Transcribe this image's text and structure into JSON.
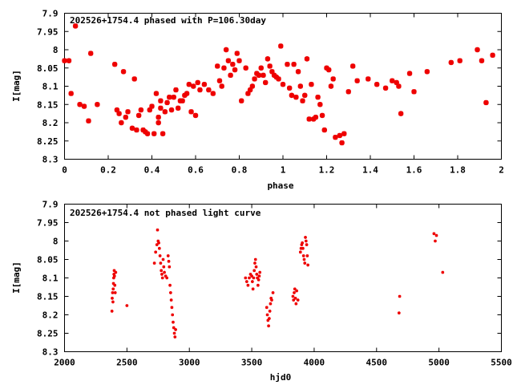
{
  "colors": {
    "series": "#ee0000",
    "axis": "#000000",
    "background": "#ffffff"
  },
  "chart_data": [
    {
      "type": "scatter",
      "title": "202526+1754.4 phased with P=106.30day",
      "xlabel": "phase",
      "ylabel": "I[mag]",
      "xlim": [
        0,
        2
      ],
      "ylim": [
        7.9,
        8.3
      ],
      "y_inverted": true,
      "grid": false,
      "xticks": [
        0,
        0.2,
        0.4,
        0.6,
        0.8,
        1,
        1.2,
        1.4,
        1.6,
        1.8,
        2
      ],
      "xtick_labels": [
        "0",
        "0.2",
        "0.4",
        "0.6",
        "0.8",
        "1",
        "1.2",
        "1.4",
        "1.6",
        "1.8",
        "2"
      ],
      "yticks": [
        7.9,
        7.95,
        8,
        8.05,
        8.1,
        8.15,
        8.2,
        8.25,
        8.3
      ],
      "ytick_labels": [
        "7.9",
        "7.95",
        "8",
        "8.05",
        "8.1",
        "8.15",
        "8.2",
        "8.25",
        "8.3"
      ],
      "marker": "large",
      "x": [
        0.0,
        0.02,
        0.03,
        0.05,
        0.07,
        0.09,
        0.11,
        0.12,
        0.15,
        0.23,
        0.24,
        0.25,
        0.26,
        0.27,
        0.28,
        0.29,
        0.31,
        0.32,
        0.33,
        0.34,
        0.35,
        0.36,
        0.37,
        0.38,
        0.39,
        0.4,
        0.41,
        0.42,
        0.43,
        0.43,
        0.44,
        0.44,
        0.45,
        0.46,
        0.47,
        0.48,
        0.49,
        0.5,
        0.51,
        0.52,
        0.53,
        0.54,
        0.55,
        0.56,
        0.57,
        0.58,
        0.59,
        0.6,
        0.61,
        0.62,
        0.64,
        0.66,
        0.68,
        0.7,
        0.71,
        0.72,
        0.73,
        0.74,
        0.75,
        0.76,
        0.77,
        0.78,
        0.79,
        0.8,
        0.81,
        0.83,
        0.84,
        0.85,
        0.86,
        0.87,
        0.88,
        0.89,
        0.9,
        0.91,
        0.92,
        0.93,
        0.94,
        0.95,
        0.96,
        0.97,
        0.98,
        0.99,
        1.0,
        1.02,
        1.03,
        1.04,
        1.05,
        1.06,
        1.07,
        1.08,
        1.09,
        1.1,
        1.11,
        1.12,
        1.13,
        1.14,
        1.15,
        1.16,
        1.17,
        1.18,
        1.19,
        1.2,
        1.21,
        1.22,
        1.23,
        1.24,
        1.26,
        1.27,
        1.28,
        1.3,
        1.32,
        1.34,
        1.39,
        1.43,
        1.47,
        1.5,
        1.52,
        1.53,
        1.54,
        1.58,
        1.6,
        1.66,
        1.77,
        1.81,
        1.89,
        1.91,
        1.93,
        1.96
      ],
      "y": [
        8.03,
        8.03,
        8.12,
        7.935,
        8.15,
        8.155,
        8.195,
        8.01,
        8.15,
        8.04,
        8.165,
        8.175,
        8.2,
        8.06,
        8.185,
        8.17,
        8.215,
        8.08,
        8.22,
        8.18,
        8.165,
        8.22,
        8.225,
        8.23,
        8.165,
        8.155,
        8.23,
        8.12,
        8.185,
        8.2,
        8.14,
        8.16,
        8.23,
        8.17,
        8.145,
        8.13,
        8.165,
        8.13,
        8.11,
        8.16,
        8.14,
        8.14,
        8.125,
        8.12,
        8.095,
        8.17,
        8.1,
        8.18,
        8.09,
        8.11,
        8.095,
        8.11,
        8.12,
        8.045,
        8.085,
        8.1,
        8.05,
        8.0,
        8.03,
        8.07,
        8.04,
        8.055,
        8.01,
        8.03,
        8.14,
        8.05,
        8.12,
        8.11,
        8.1,
        8.08,
        8.065,
        8.07,
        8.05,
        8.07,
        8.09,
        8.025,
        8.045,
        8.06,
        8.07,
        8.075,
        8.08,
        7.99,
        8.095,
        8.04,
        8.105,
        8.125,
        8.04,
        8.13,
        8.06,
        8.1,
        8.14,
        8.125,
        8.025,
        8.19,
        8.095,
        8.19,
        8.185,
        8.13,
        8.15,
        8.18,
        8.22,
        8.05,
        8.055,
        8.1,
        8.08,
        8.24,
        8.235,
        8.255,
        8.23,
        8.115,
        8.045,
        8.085,
        8.08,
        8.095,
        8.105,
        8.085,
        8.09,
        8.1,
        8.175,
        8.065,
        8.115,
        8.06,
        8.035,
        8.03,
        8.0,
        8.03,
        8.145,
        8.015
      ]
    },
    {
      "type": "scatter",
      "title": "202526+1754.4 not phased light curve",
      "xlabel": "hjd0",
      "ylabel": "I[mag]",
      "xlim": [
        2000,
        5500
      ],
      "ylim": [
        7.9,
        8.3
      ],
      "y_inverted": true,
      "grid": false,
      "xticks": [
        2000,
        2500,
        3000,
        3500,
        4000,
        4500,
        5000,
        5500
      ],
      "xtick_labels": [
        "2000",
        "2500",
        "3000",
        "3500",
        "4000",
        "4500",
        "5000",
        "5500"
      ],
      "yticks": [
        7.9,
        7.95,
        8,
        8.05,
        8.1,
        8.15,
        8.2,
        8.25,
        8.3
      ],
      "ytick_labels": [
        "7.9",
        "7.95",
        "8",
        "8.05",
        "8.1",
        "8.15",
        "8.2",
        "8.25",
        "8.3"
      ],
      "marker": "small",
      "x": [
        2380,
        2382,
        2385,
        2388,
        2390,
        2392,
        2394,
        2396,
        2398,
        2400,
        2403,
        2406,
        2410,
        2500,
        2720,
        2730,
        2740,
        2745,
        2750,
        2755,
        2760,
        2765,
        2770,
        2775,
        2780,
        2785,
        2790,
        2795,
        2800,
        2810,
        2820,
        2830,
        2835,
        2840,
        2845,
        2850,
        2855,
        2860,
        2865,
        2870,
        2875,
        2880,
        2885,
        2890,
        3450,
        3460,
        3470,
        3480,
        3490,
        3500,
        3505,
        3510,
        3515,
        3520,
        3525,
        3530,
        3535,
        3540,
        3545,
        3550,
        3555,
        3560,
        3565,
        3620,
        3625,
        3630,
        3635,
        3640,
        3645,
        3650,
        3655,
        3660,
        3670,
        3830,
        3835,
        3840,
        3845,
        3850,
        3855,
        3860,
        3870,
        3890,
        3895,
        3900,
        3905,
        3910,
        3915,
        3920,
        3925,
        3930,
        3935,
        3940,
        3945,
        3950,
        4680,
        4685,
        4960,
        4970,
        4980,
        5030
      ],
      "y": [
        8.19,
        8.155,
        8.14,
        8.165,
        8.13,
        8.115,
        8.1,
        8.09,
        8.08,
        8.095,
        8.12,
        8.14,
        8.085,
        8.175,
        8.06,
        8.03,
        8.01,
        7.97,
        8.0,
        8.005,
        8.02,
        8.04,
        8.06,
        8.08,
        8.09,
        8.1,
        8.05,
        8.07,
        8.085,
        8.095,
        8.1,
        8.04,
        8.055,
        8.07,
        8.12,
        8.14,
        8.16,
        8.18,
        8.2,
        8.22,
        8.235,
        8.25,
        8.26,
        8.24,
        8.1,
        8.11,
        8.12,
        8.1,
        8.09,
        8.095,
        8.11,
        8.13,
        8.1,
        8.08,
        8.06,
        8.05,
        8.07,
        8.09,
        8.1,
        8.12,
        8.105,
        8.095,
        8.085,
        8.18,
        8.2,
        8.215,
        8.23,
        8.21,
        8.19,
        8.17,
        8.155,
        8.16,
        8.14,
        8.15,
        8.16,
        8.14,
        8.13,
        8.155,
        8.17,
        8.135,
        8.16,
        8.03,
        8.02,
        8.01,
        8.005,
        8.02,
        8.04,
        8.05,
        8.06,
        7.99,
        8.0,
        8.01,
        8.04,
        8.065,
        8.195,
        8.15,
        7.98,
        8.0,
        7.985,
        8.085
      ]
    }
  ]
}
